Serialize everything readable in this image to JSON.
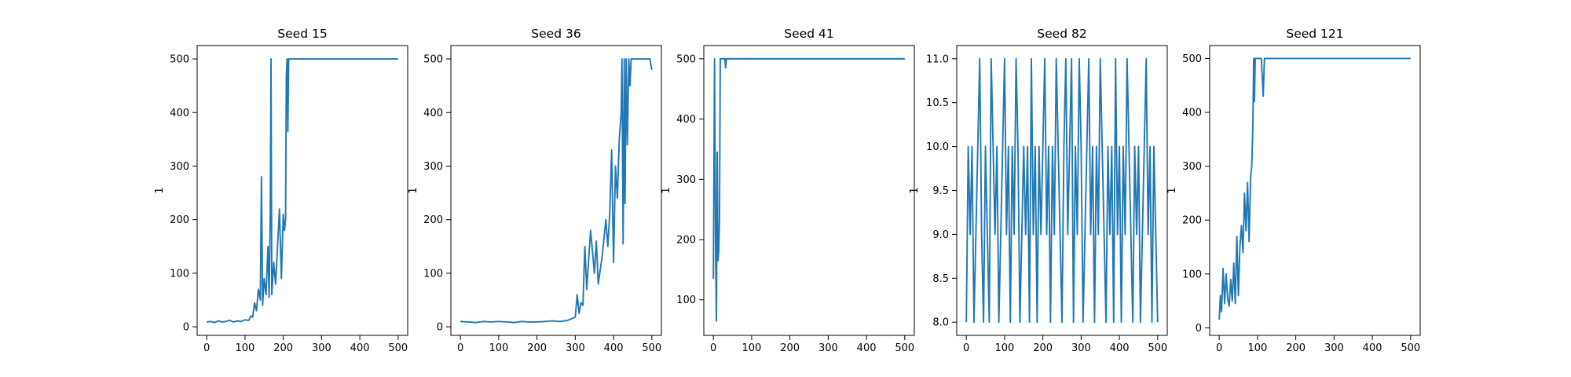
{
  "chart_data": [
    {
      "type": "line",
      "title": "Seed 15",
      "ylabel": "1",
      "color": "#1f77b4",
      "x": [
        0,
        10,
        20,
        30,
        40,
        50,
        60,
        70,
        80,
        90,
        100,
        110,
        115,
        120,
        125,
        130,
        135,
        140,
        143,
        146,
        150,
        155,
        160,
        163,
        166,
        168,
        170,
        175,
        180,
        185,
        190,
        195,
        200,
        203,
        206,
        208,
        210,
        212,
        214,
        216,
        220,
        500
      ],
      "values": [
        9,
        10,
        8,
        11,
        9,
        10,
        12,
        9,
        11,
        10,
        13,
        12,
        20,
        18,
        45,
        30,
        70,
        50,
        280,
        40,
        90,
        60,
        150,
        55,
        210,
        500,
        60,
        120,
        80,
        150,
        220,
        90,
        210,
        180,
        200,
        470,
        500,
        365,
        500,
        500,
        500,
        500
      ],
      "xlim": [
        -25,
        525
      ],
      "xticks": [
        0,
        100,
        200,
        300,
        400,
        500
      ],
      "ylim": [
        -16,
        525
      ],
      "yticks": [
        0,
        100,
        200,
        300,
        400,
        500
      ]
    },
    {
      "type": "line",
      "title": "Seed 36",
      "ylabel": "1",
      "color": "#1f77b4",
      "x": [
        0,
        20,
        40,
        60,
        80,
        100,
        120,
        140,
        160,
        180,
        200,
        220,
        240,
        260,
        280,
        290,
        300,
        305,
        310,
        315,
        320,
        325,
        330,
        340,
        350,
        355,
        360,
        370,
        380,
        385,
        390,
        395,
        400,
        405,
        410,
        415,
        420,
        422,
        425,
        428,
        430,
        433,
        436,
        440,
        443,
        446,
        450,
        455,
        460,
        470,
        480,
        490,
        495,
        500
      ],
      "values": [
        10,
        9,
        8,
        10,
        9,
        10,
        9,
        8,
        10,
        9,
        9,
        10,
        11,
        10,
        12,
        15,
        18,
        60,
        25,
        45,
        40,
        150,
        70,
        180,
        100,
        160,
        80,
        130,
        200,
        150,
        210,
        330,
        120,
        300,
        240,
        350,
        400,
        500,
        155,
        500,
        230,
        500,
        340,
        500,
        450,
        500,
        500,
        500,
        500,
        500,
        500,
        500,
        500,
        480
      ],
      "xlim": [
        -25,
        525
      ],
      "xticks": [
        0,
        100,
        200,
        300,
        400,
        500
      ],
      "ylim": [
        -16,
        525
      ],
      "yticks": [
        0,
        100,
        200,
        300,
        400,
        500
      ]
    },
    {
      "type": "line",
      "title": "Seed 41",
      "ylabel": "1",
      "color": "#1f77b4",
      "x": [
        0,
        3,
        6,
        8,
        10,
        12,
        14,
        16,
        18,
        20,
        22,
        25,
        30,
        32,
        34,
        36,
        40,
        500
      ],
      "values": [
        135,
        500,
        170,
        65,
        345,
        165,
        180,
        240,
        500,
        500,
        500,
        500,
        500,
        485,
        500,
        500,
        500,
        500
      ],
      "xlim": [
        -25,
        525
      ],
      "xticks": [
        0,
        100,
        200,
        300,
        400,
        500
      ],
      "ylim": [
        41,
        522
      ],
      "yticks": [
        100,
        200,
        300,
        400,
        500
      ]
    },
    {
      "type": "line",
      "title": "Seed 82",
      "ylabel": "1",
      "color": "#1f77b4",
      "x": [
        0,
        5,
        10,
        15,
        20,
        25,
        30,
        35,
        40,
        45,
        50,
        55,
        60,
        65,
        70,
        75,
        80,
        85,
        90,
        95,
        100,
        105,
        110,
        115,
        120,
        125,
        130,
        135,
        140,
        145,
        150,
        155,
        160,
        165,
        170,
        175,
        180,
        185,
        190,
        195,
        200,
        205,
        210,
        215,
        220,
        225,
        230,
        235,
        240,
        245,
        250,
        255,
        260,
        265,
        270,
        275,
        280,
        285,
        290,
        295,
        300,
        305,
        310,
        315,
        320,
        325,
        330,
        335,
        340,
        345,
        350,
        355,
        360,
        365,
        370,
        375,
        380,
        385,
        390,
        395,
        400,
        405,
        410,
        415,
        420,
        425,
        430,
        435,
        440,
        445,
        450,
        455,
        460,
        465,
        470,
        475,
        480,
        485,
        490,
        495,
        500
      ],
      "values": [
        8,
        10,
        9,
        10,
        8,
        9,
        10,
        11,
        9,
        8,
        10,
        9,
        8,
        11,
        10,
        9,
        10,
        8,
        9,
        10,
        11,
        9,
        10,
        8,
        10,
        9,
        11,
        10,
        8,
        9,
        10,
        9,
        10,
        8,
        11,
        9,
        10,
        8,
        10,
        9,
        10,
        11,
        9,
        10,
        8,
        10,
        9,
        11,
        10,
        9,
        8,
        10,
        11,
        9,
        10,
        11,
        8,
        10,
        9,
        11,
        10,
        8,
        9,
        10,
        11,
        9,
        10,
        8,
        10,
        9,
        11,
        10,
        9,
        8,
        10,
        9,
        10,
        8,
        11,
        9,
        10,
        8,
        10,
        9,
        11,
        10,
        9,
        8,
        10,
        9,
        10,
        8,
        9,
        10,
        11,
        9,
        10,
        8,
        10,
        9,
        8
      ],
      "xlim": [
        -25,
        525
      ],
      "xticks": [
        0,
        100,
        200,
        300,
        400,
        500
      ],
      "ylim": [
        7.85,
        11.15
      ],
      "yticks": [
        {
          "value": 8,
          "label": "8.0"
        },
        8.5,
        {
          "value": 9,
          "label": "9.0"
        },
        9.5,
        {
          "value": 10,
          "label": "10.0"
        },
        10.5,
        {
          "value": 11,
          "label": "11.0"
        }
      ]
    },
    {
      "type": "line",
      "title": "Seed 121",
      "ylabel": "1",
      "color": "#1f77b4",
      "x": [
        0,
        3,
        6,
        10,
        14,
        18,
        22,
        26,
        30,
        34,
        38,
        42,
        46,
        50,
        54,
        58,
        62,
        66,
        70,
        74,
        78,
        82,
        85,
        88,
        90,
        92,
        94,
        96,
        100,
        110,
        115,
        118,
        120,
        500
      ],
      "values": [
        15,
        60,
        30,
        110,
        45,
        100,
        55,
        40,
        90,
        50,
        120,
        45,
        170,
        60,
        150,
        190,
        140,
        250,
        180,
        270,
        160,
        280,
        300,
        380,
        500,
        420,
        500,
        500,
        500,
        500,
        430,
        500,
        500,
        500
      ],
      "xlim": [
        -25,
        525
      ],
      "xticks": [
        0,
        100,
        200,
        300,
        400,
        500
      ],
      "ylim": [
        -14,
        524
      ],
      "yticks": [
        0,
        100,
        200,
        300,
        400,
        500
      ]
    }
  ]
}
